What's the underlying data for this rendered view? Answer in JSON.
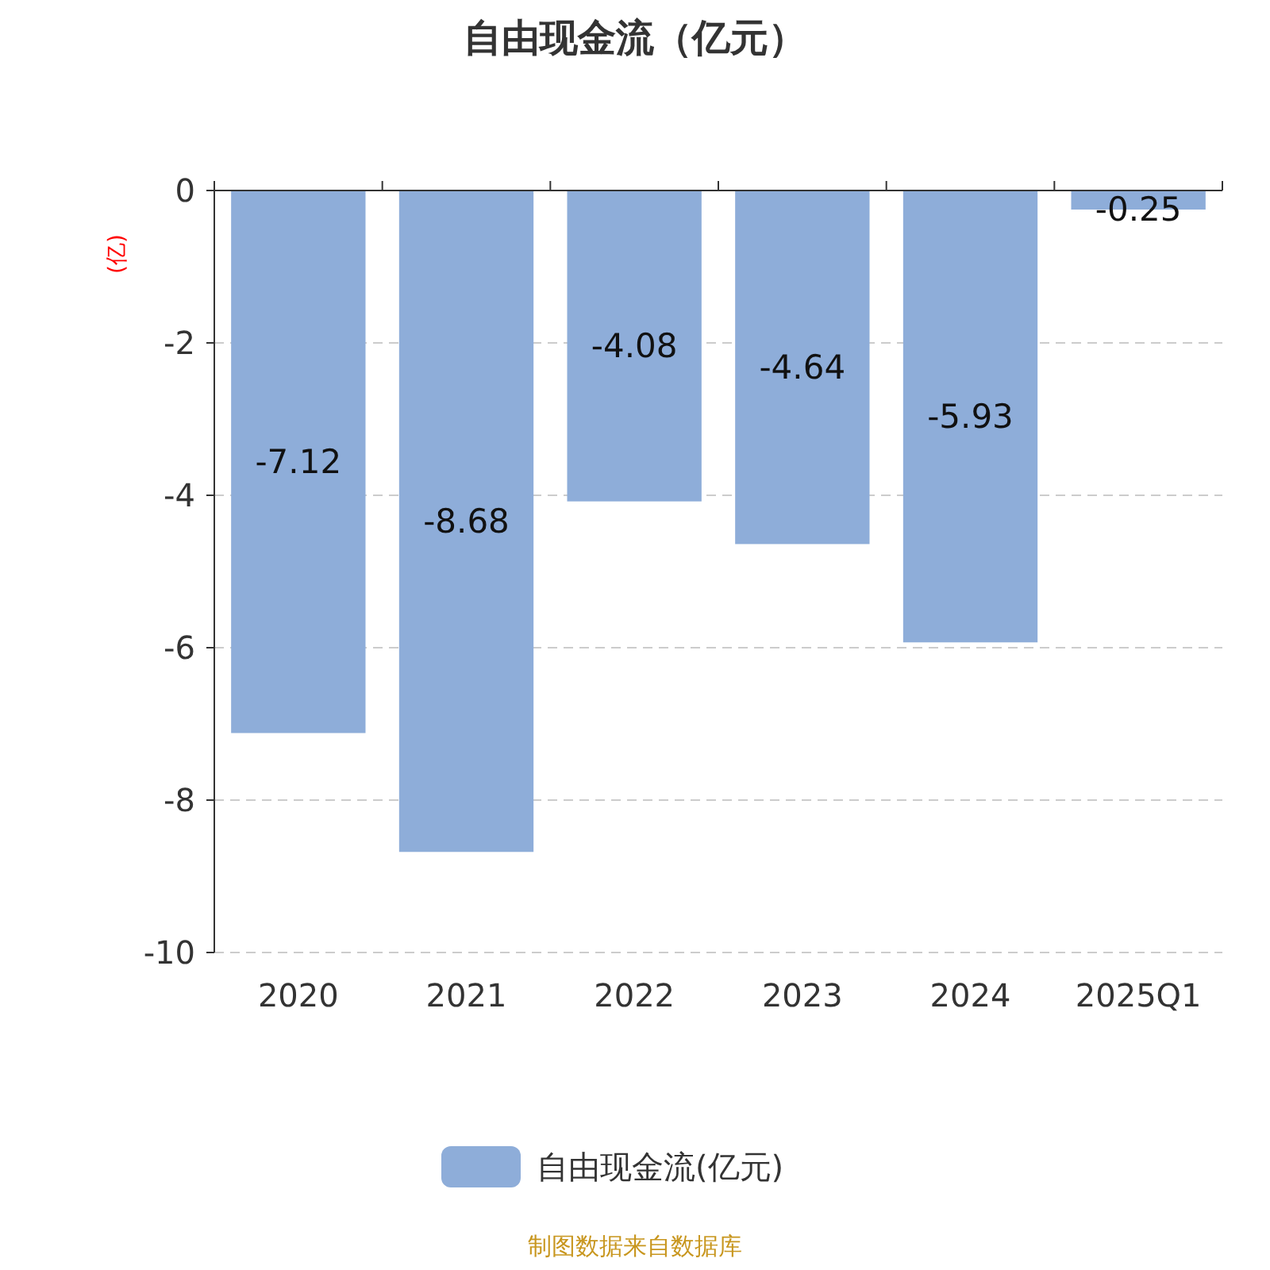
{
  "chart_data": {
    "type": "bar",
    "title": "自由现金流（亿元）",
    "ylabel": "(亿)",
    "categories": [
      "2020",
      "2021",
      "2022",
      "2023",
      "2024",
      "2025Q1"
    ],
    "series": [
      {
        "name": "自由现金流(亿元)",
        "color": "#8eadd9",
        "values": [
          -7.12,
          -8.68,
          -4.08,
          -4.64,
          -5.93,
          -0.25
        ]
      }
    ],
    "ylim": [
      -10,
      0
    ],
    "yticks": [
      0,
      -2,
      -4,
      -6,
      -8,
      -10
    ],
    "grid": "y",
    "legend": "bottom",
    "data_labels": true,
    "annotations": [
      "制图数据来自数据库"
    ]
  }
}
